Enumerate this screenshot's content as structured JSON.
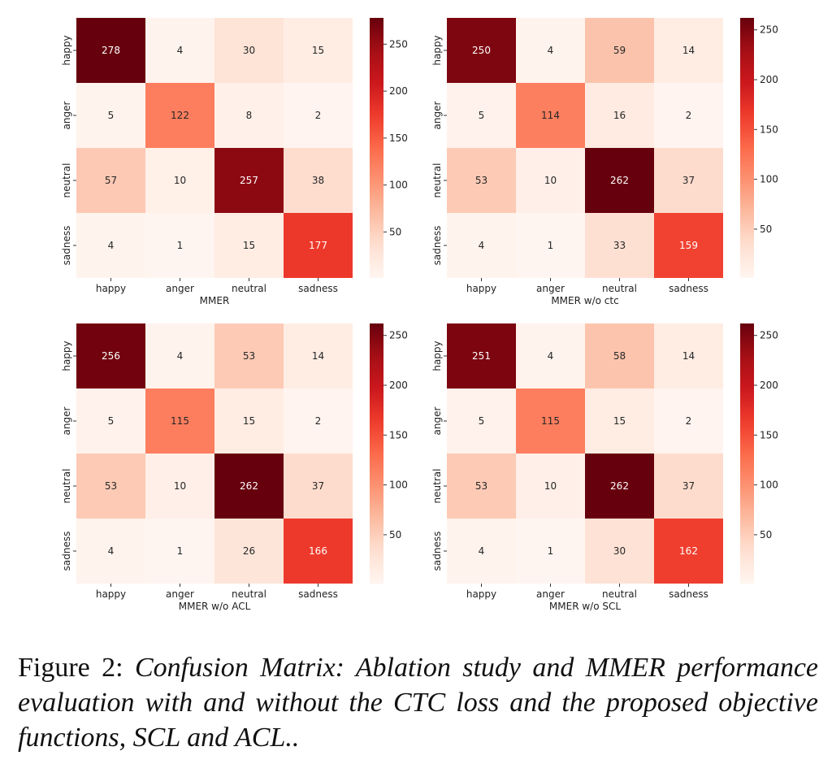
{
  "chart_data": [
    {
      "type": "heatmap",
      "title": "",
      "xlabel": "MMER",
      "ylabel": "",
      "x_categories": [
        "happy",
        "anger",
        "neutral",
        "sadness"
      ],
      "y_categories": [
        "happy",
        "anger",
        "neutral",
        "sadness"
      ],
      "values": [
        [
          278,
          4,
          30,
          15
        ],
        [
          5,
          122,
          8,
          2
        ],
        [
          57,
          10,
          257,
          38
        ],
        [
          4,
          1,
          15,
          177
        ]
      ],
      "colorbar": {
        "min": 1,
        "max": 278,
        "ticks": [
          50,
          100,
          150,
          200,
          250
        ]
      },
      "colormap": "Reds"
    },
    {
      "type": "heatmap",
      "title": "",
      "xlabel": "MMER w/o ctc",
      "ylabel": "",
      "x_categories": [
        "happy",
        "anger",
        "neutral",
        "sadness"
      ],
      "y_categories": [
        "happy",
        "anger",
        "neutral",
        "sadness"
      ],
      "values": [
        [
          250,
          4,
          59,
          14
        ],
        [
          5,
          114,
          16,
          2
        ],
        [
          53,
          10,
          262,
          37
        ],
        [
          4,
          1,
          33,
          159
        ]
      ],
      "colorbar": {
        "min": 1,
        "max": 262,
        "ticks": [
          50,
          100,
          150,
          200,
          250
        ]
      },
      "colormap": "Reds"
    },
    {
      "type": "heatmap",
      "title": "",
      "xlabel": "MMER w/o ACL",
      "ylabel": "",
      "x_categories": [
        "happy",
        "anger",
        "neutral",
        "sadness"
      ],
      "y_categories": [
        "happy",
        "anger",
        "neutral",
        "sadness"
      ],
      "values": [
        [
          256,
          4,
          53,
          14
        ],
        [
          5,
          115,
          15,
          2
        ],
        [
          53,
          10,
          262,
          37
        ],
        [
          4,
          1,
          26,
          166
        ]
      ],
      "colorbar": {
        "min": 1,
        "max": 262,
        "ticks": [
          50,
          100,
          150,
          200,
          250
        ]
      },
      "colormap": "Reds"
    },
    {
      "type": "heatmap",
      "title": "",
      "xlabel": "MMER w/o SCL",
      "ylabel": "",
      "x_categories": [
        "happy",
        "anger",
        "neutral",
        "sadness"
      ],
      "y_categories": [
        "happy",
        "anger",
        "neutral",
        "sadness"
      ],
      "values": [
        [
          251,
          4,
          58,
          14
        ],
        [
          5,
          115,
          15,
          2
        ],
        [
          53,
          10,
          262,
          37
        ],
        [
          4,
          1,
          30,
          162
        ]
      ],
      "colorbar": {
        "min": 1,
        "max": 262,
        "ticks": [
          50,
          100,
          150,
          200,
          250
        ]
      },
      "colormap": "Reds"
    }
  ],
  "caption": {
    "label": "Figure 2:",
    "text": "Confusion Matrix: Ablation study and MMER performance evaluation with and without the CTC loss and the proposed objective functions, SCL and ACL.."
  }
}
